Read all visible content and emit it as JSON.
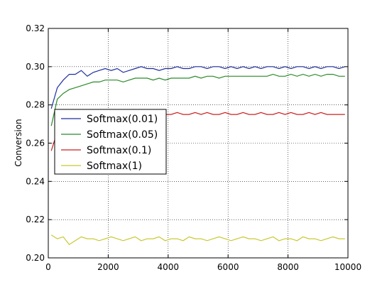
{
  "chart_data": {
    "type": "line",
    "title": "",
    "xlabel": "",
    "ylabel": "Conversion",
    "xlim": [
      0,
      10000
    ],
    "ylim": [
      0.2,
      0.32
    ],
    "x_ticks": [
      0,
      2000,
      4000,
      6000,
      8000,
      10000
    ],
    "x_tick_labels": [
      "0",
      "2000",
      "4000",
      "6000",
      "8000",
      "10000"
    ],
    "y_ticks": [
      0.2,
      0.22,
      0.24,
      0.26,
      0.28,
      0.3,
      0.32
    ],
    "y_tick_labels": [
      "0.20",
      "0.22",
      "0.24",
      "0.26",
      "0.28",
      "0.30",
      "0.32"
    ],
    "grid": true,
    "legend_position": "center-left",
    "x": [
      100,
      300,
      500,
      700,
      900,
      1100,
      1300,
      1500,
      1700,
      1900,
      2100,
      2300,
      2500,
      2700,
      2900,
      3100,
      3300,
      3500,
      3700,
      3900,
      4100,
      4300,
      4500,
      4700,
      4900,
      5100,
      5300,
      5500,
      5700,
      5900,
      6100,
      6300,
      6500,
      6700,
      6900,
      7100,
      7300,
      7500,
      7700,
      7900,
      8100,
      8300,
      8500,
      8700,
      8900,
      9100,
      9300,
      9500,
      9700,
      9900
    ],
    "series": [
      {
        "name": "Softmax(0.01)",
        "color": "#1f2f9f",
        "values": [
          0.278,
          0.289,
          0.293,
          0.296,
          0.296,
          0.298,
          0.295,
          0.297,
          0.298,
          0.299,
          0.298,
          0.299,
          0.297,
          0.298,
          0.299,
          0.3,
          0.299,
          0.299,
          0.298,
          0.299,
          0.299,
          0.3,
          0.299,
          0.299,
          0.3,
          0.3,
          0.299,
          0.3,
          0.3,
          0.299,
          0.3,
          0.299,
          0.3,
          0.299,
          0.3,
          0.299,
          0.3,
          0.3,
          0.299,
          0.3,
          0.299,
          0.3,
          0.3,
          0.299,
          0.3,
          0.299,
          0.3,
          0.3,
          0.299,
          0.3
        ]
      },
      {
        "name": "Softmax(0.05)",
        "color": "#2a8a2a",
        "values": [
          0.269,
          0.283,
          0.286,
          0.288,
          0.289,
          0.29,
          0.291,
          0.292,
          0.292,
          0.293,
          0.293,
          0.293,
          0.292,
          0.293,
          0.294,
          0.294,
          0.294,
          0.293,
          0.294,
          0.293,
          0.294,
          0.294,
          0.294,
          0.294,
          0.295,
          0.294,
          0.295,
          0.295,
          0.294,
          0.295,
          0.295,
          0.295,
          0.295,
          0.295,
          0.295,
          0.295,
          0.295,
          0.296,
          0.295,
          0.295,
          0.296,
          0.295,
          0.296,
          0.295,
          0.296,
          0.295,
          0.296,
          0.296,
          0.295,
          0.295
        ]
      },
      {
        "name": "Softmax(0.1)",
        "color": "#cc2222",
        "values": [
          0.256,
          0.266,
          0.27,
          0.272,
          0.273,
          0.274,
          0.274,
          0.275,
          0.275,
          0.275,
          0.276,
          0.275,
          0.276,
          0.275,
          0.276,
          0.275,
          0.276,
          0.275,
          0.276,
          0.275,
          0.275,
          0.276,
          0.275,
          0.275,
          0.276,
          0.275,
          0.276,
          0.275,
          0.275,
          0.276,
          0.275,
          0.275,
          0.276,
          0.275,
          0.275,
          0.276,
          0.275,
          0.275,
          0.276,
          0.275,
          0.276,
          0.275,
          0.275,
          0.276,
          0.275,
          0.276,
          0.275,
          0.275,
          0.275,
          0.275
        ]
      },
      {
        "name": "Softmax(1)",
        "color": "#c8c832",
        "values": [
          0.212,
          0.21,
          0.211,
          0.207,
          0.209,
          0.211,
          0.21,
          0.21,
          0.209,
          0.21,
          0.211,
          0.21,
          0.209,
          0.21,
          0.211,
          0.209,
          0.21,
          0.21,
          0.211,
          0.209,
          0.21,
          0.21,
          0.209,
          0.211,
          0.21,
          0.21,
          0.209,
          0.21,
          0.211,
          0.21,
          0.209,
          0.21,
          0.211,
          0.21,
          0.21,
          0.209,
          0.21,
          0.211,
          0.209,
          0.21,
          0.21,
          0.209,
          0.211,
          0.21,
          0.21,
          0.209,
          0.21,
          0.211,
          0.21,
          0.21
        ]
      }
    ]
  }
}
